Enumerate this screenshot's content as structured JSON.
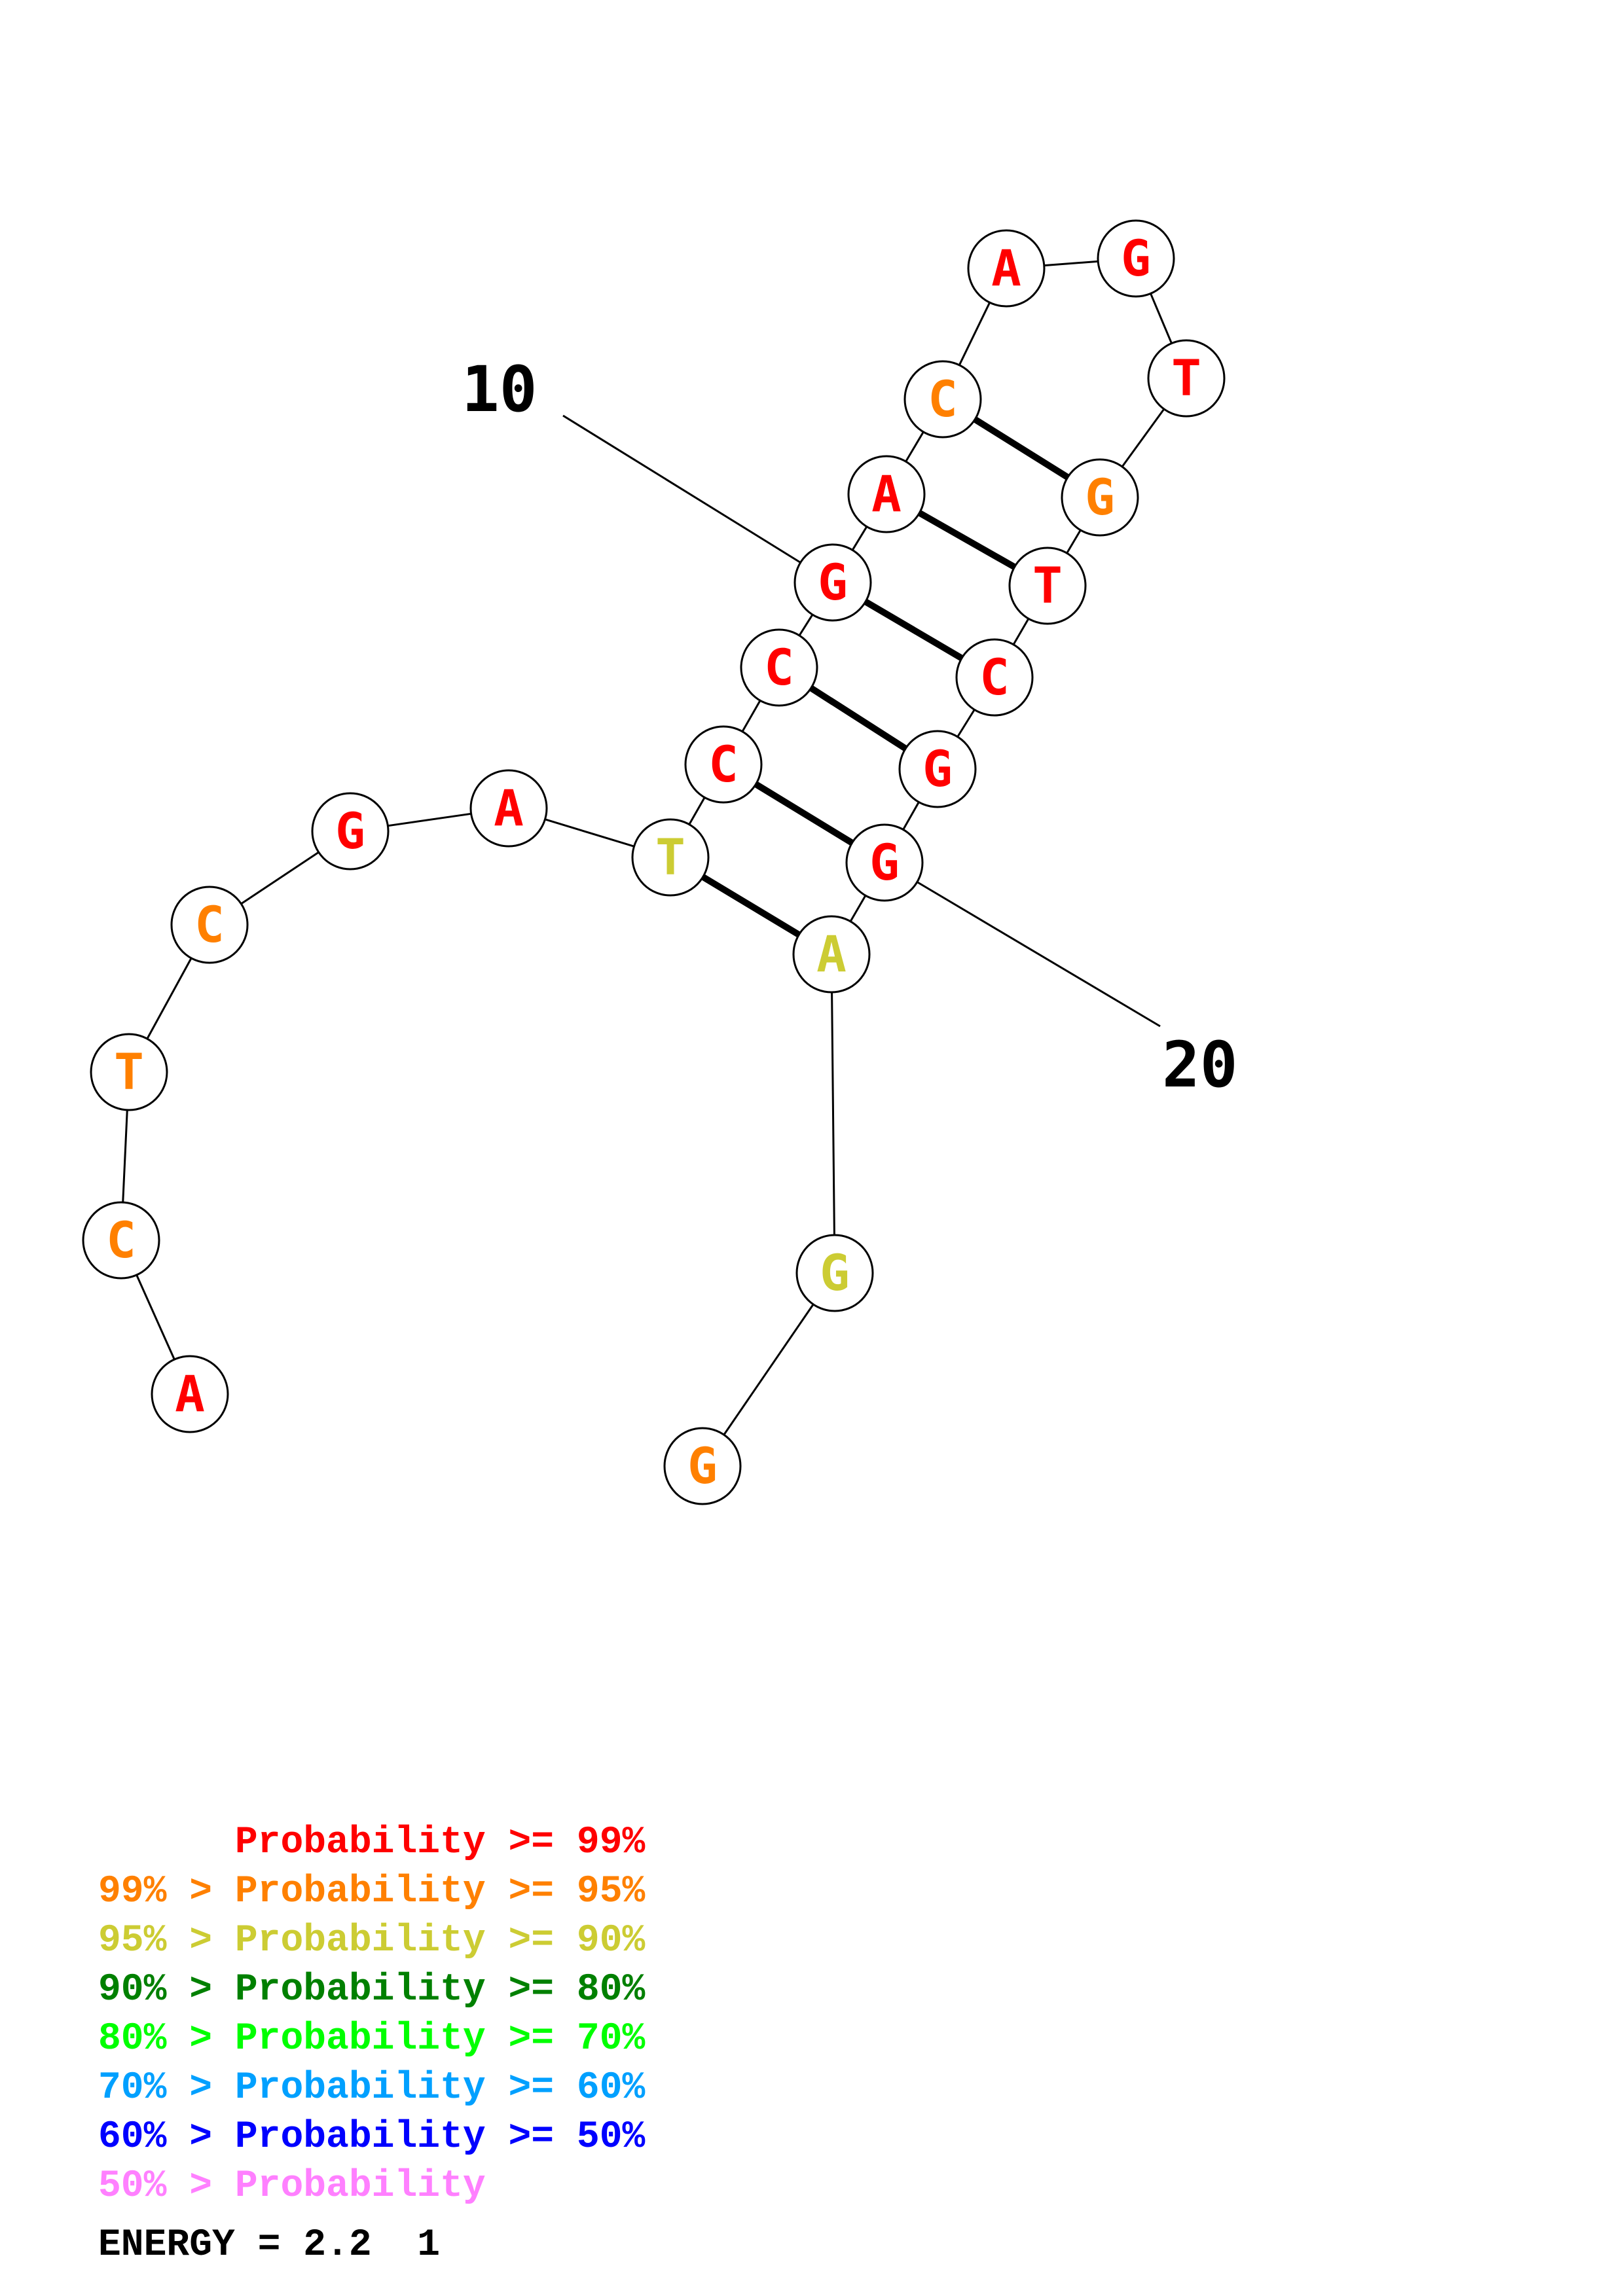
{
  "colors": {
    "p99": "#ff0000",
    "p95": "#ff8000",
    "p90": "#cccc33",
    "p80": "#008000",
    "p70": "#00ff00",
    "p60": "#00a0ff",
    "p50": "#0000ff",
    "plow": "#ff80ff"
  },
  "nucleotides": [
    {
      "base": "A",
      "color": "p99"
    },
    {
      "base": "C",
      "color": "p95"
    },
    {
      "base": "T",
      "color": "p95"
    },
    {
      "base": "C",
      "color": "p95"
    },
    {
      "base": "G",
      "color": "p99"
    },
    {
      "base": "A",
      "color": "p99"
    },
    {
      "base": "T",
      "color": "p90"
    },
    {
      "base": "C",
      "color": "p99"
    },
    {
      "base": "C",
      "color": "p99"
    },
    {
      "base": "G",
      "color": "p99"
    },
    {
      "base": "A",
      "color": "p99"
    },
    {
      "base": "C",
      "color": "p95"
    },
    {
      "base": "A",
      "color": "p99"
    },
    {
      "base": "G",
      "color": "p99"
    },
    {
      "base": "T",
      "color": "p99"
    },
    {
      "base": "G",
      "color": "p95"
    },
    {
      "base": "T",
      "color": "p99"
    },
    {
      "base": "C",
      "color": "p99"
    },
    {
      "base": "G",
      "color": "p99"
    },
    {
      "base": "G",
      "color": "p99"
    },
    {
      "base": "A",
      "color": "p90"
    },
    {
      "base": "G",
      "color": "p90"
    },
    {
      "base": "G",
      "color": "p95"
    }
  ],
  "pairs": [
    [
      7,
      21
    ],
    [
      8,
      20
    ],
    [
      9,
      19
    ],
    [
      10,
      18
    ],
    [
      11,
      17
    ],
    [
      12,
      16
    ]
  ],
  "markers": [
    {
      "label": "10",
      "nucleotide": 10
    },
    {
      "label": "20",
      "nucleotide": 20
    }
  ],
  "legend": [
    {
      "prefix": "",
      "label": "Probability",
      "suffix": ">= 99%",
      "color": "p99"
    },
    {
      "prefix": "99% >",
      "label": "Probability",
      "suffix": ">= 95%",
      "color": "p95"
    },
    {
      "prefix": "95% >",
      "label": "Probability",
      "suffix": ">= 90%",
      "color": "p90"
    },
    {
      "prefix": "90% >",
      "label": "Probability",
      "suffix": ">= 80%",
      "color": "p80"
    },
    {
      "prefix": "80% >",
      "label": "Probability",
      "suffix": ">= 70%",
      "color": "p70"
    },
    {
      "prefix": "70% >",
      "label": "Probability",
      "suffix": ">= 60%",
      "color": "p60"
    },
    {
      "prefix": "60% >",
      "label": "Probability",
      "suffix": ">= 50%",
      "color": "p50"
    },
    {
      "prefix": "50% >",
      "label": "Probability",
      "suffix": "",
      "color": "plow"
    }
  ],
  "energy": {
    "text": "ENERGY = 2.2  1"
  }
}
